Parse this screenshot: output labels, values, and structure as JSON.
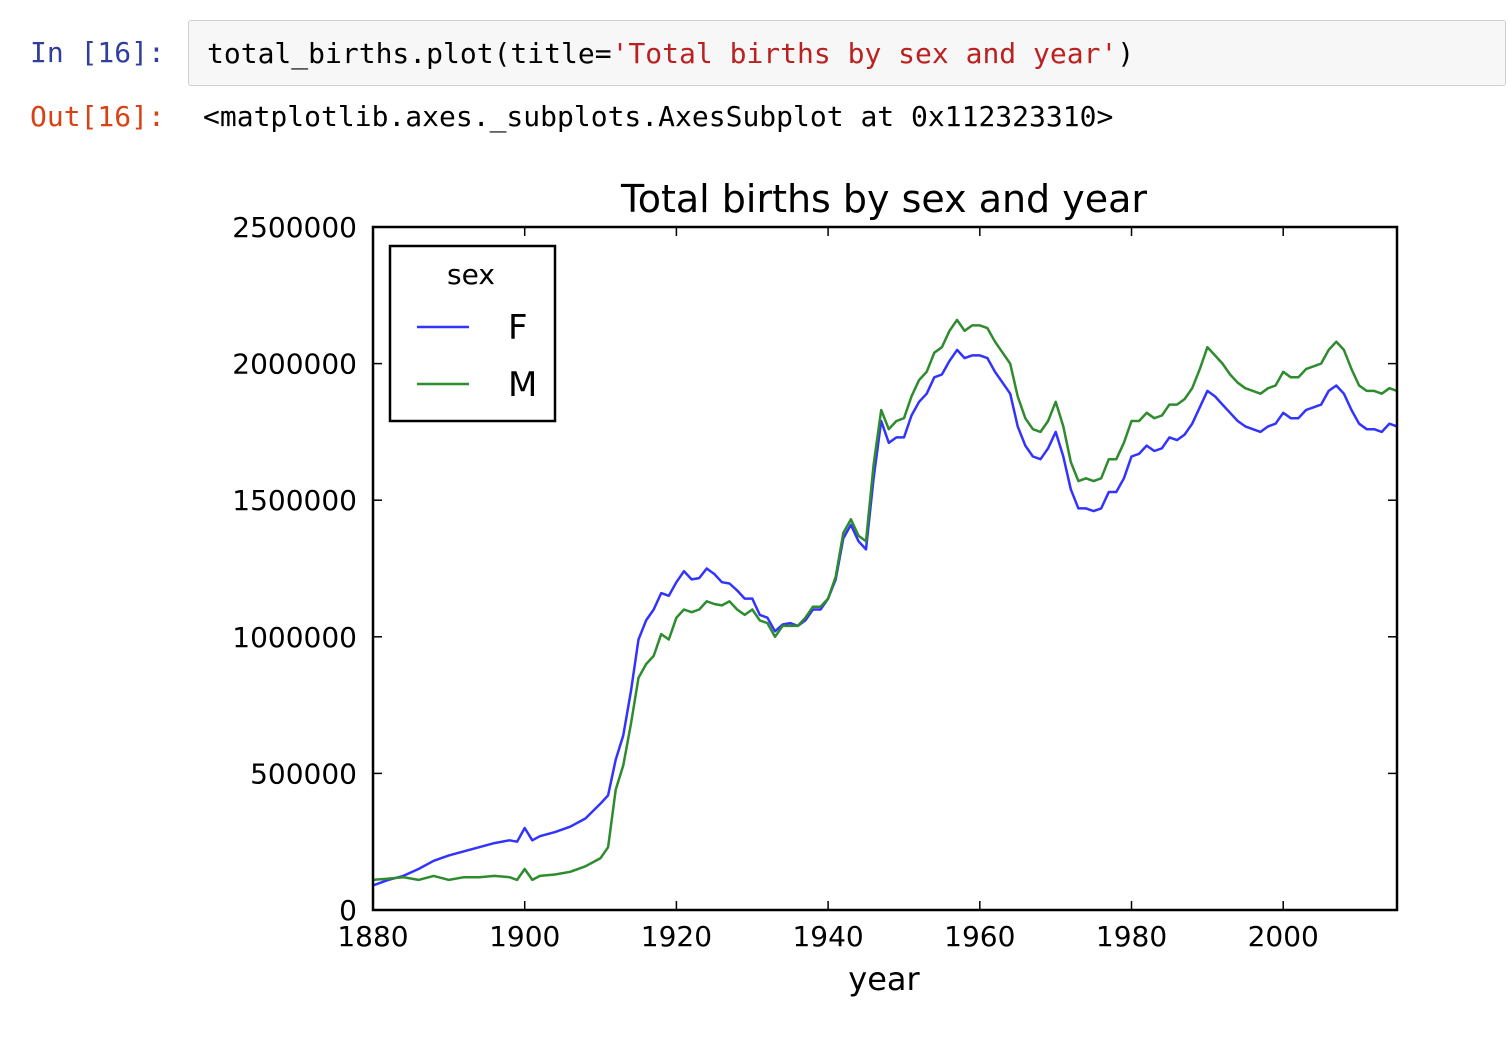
{
  "cell": {
    "input_prompt": "In [16]:",
    "output_prompt": "Out[16]:",
    "code_prefix": "total_births.plot(title=",
    "code_string": "'Total births by sex and year'",
    "code_suffix": ")",
    "output_repr": "<matplotlib.axes._subplots.AxesSubplot at 0x112323310>"
  },
  "colors": {
    "prompt_in": "#303F9F",
    "prompt_out": "#D84315",
    "code_string": "#BA2121",
    "series_F": "#3333FF",
    "series_M": "#2E8B2E"
  },
  "chart_data": {
    "type": "line",
    "title": "Total births by sex and year",
    "xlabel": "year",
    "ylabel": "",
    "xlim": [
      1880,
      2015
    ],
    "ylim": [
      0,
      2500000
    ],
    "xticks": [
      1880,
      1900,
      1920,
      1940,
      1960,
      1980,
      2000
    ],
    "yticks": [
      0,
      500000,
      1000000,
      1500000,
      2000000,
      2500000
    ],
    "grid": false,
    "legend": {
      "title": "sex",
      "placement": "upper-left"
    },
    "series": [
      {
        "name": "F",
        "points": [
          [
            1880,
            90000
          ],
          [
            1882,
            110000
          ],
          [
            1884,
            125000
          ],
          [
            1886,
            150000
          ],
          [
            1888,
            180000
          ],
          [
            1890,
            200000
          ],
          [
            1892,
            215000
          ],
          [
            1894,
            230000
          ],
          [
            1896,
            245000
          ],
          [
            1898,
            255000
          ],
          [
            1899,
            250000
          ],
          [
            1900,
            300000
          ],
          [
            1901,
            255000
          ],
          [
            1902,
            270000
          ],
          [
            1904,
            285000
          ],
          [
            1906,
            305000
          ],
          [
            1908,
            335000
          ],
          [
            1910,
            390000
          ],
          [
            1911,
            420000
          ],
          [
            1912,
            550000
          ],
          [
            1913,
            640000
          ],
          [
            1914,
            800000
          ],
          [
            1915,
            990000
          ],
          [
            1916,
            1060000
          ],
          [
            1917,
            1100000
          ],
          [
            1918,
            1160000
          ],
          [
            1919,
            1150000
          ],
          [
            1920,
            1200000
          ],
          [
            1921,
            1240000
          ],
          [
            1922,
            1210000
          ],
          [
            1923,
            1215000
          ],
          [
            1924,
            1250000
          ],
          [
            1925,
            1230000
          ],
          [
            1926,
            1200000
          ],
          [
            1927,
            1195000
          ],
          [
            1928,
            1170000
          ],
          [
            1929,
            1140000
          ],
          [
            1930,
            1140000
          ],
          [
            1931,
            1080000
          ],
          [
            1932,
            1070000
          ],
          [
            1933,
            1020000
          ],
          [
            1934,
            1045000
          ],
          [
            1935,
            1050000
          ],
          [
            1936,
            1040000
          ],
          [
            1937,
            1060000
          ],
          [
            1938,
            1100000
          ],
          [
            1939,
            1100000
          ],
          [
            1940,
            1140000
          ],
          [
            1941,
            1210000
          ],
          [
            1942,
            1360000
          ],
          [
            1943,
            1410000
          ],
          [
            1944,
            1350000
          ],
          [
            1945,
            1320000
          ],
          [
            1946,
            1580000
          ],
          [
            1947,
            1790000
          ],
          [
            1948,
            1710000
          ],
          [
            1949,
            1730000
          ],
          [
            1950,
            1730000
          ],
          [
            1951,
            1810000
          ],
          [
            1952,
            1860000
          ],
          [
            1953,
            1890000
          ],
          [
            1954,
            1950000
          ],
          [
            1955,
            1960000
          ],
          [
            1956,
            2010000
          ],
          [
            1957,
            2050000
          ],
          [
            1958,
            2020000
          ],
          [
            1959,
            2030000
          ],
          [
            1960,
            2030000
          ],
          [
            1961,
            2020000
          ],
          [
            1962,
            1970000
          ],
          [
            1963,
            1930000
          ],
          [
            1964,
            1890000
          ],
          [
            1965,
            1770000
          ],
          [
            1966,
            1700000
          ],
          [
            1967,
            1660000
          ],
          [
            1968,
            1650000
          ],
          [
            1969,
            1690000
          ],
          [
            1970,
            1750000
          ],
          [
            1971,
            1660000
          ],
          [
            1972,
            1540000
          ],
          [
            1973,
            1470000
          ],
          [
            1974,
            1470000
          ],
          [
            1975,
            1460000
          ],
          [
            1976,
            1470000
          ],
          [
            1977,
            1530000
          ],
          [
            1978,
            1530000
          ],
          [
            1979,
            1580000
          ],
          [
            1980,
            1660000
          ],
          [
            1981,
            1670000
          ],
          [
            1982,
            1700000
          ],
          [
            1983,
            1680000
          ],
          [
            1984,
            1690000
          ],
          [
            1985,
            1730000
          ],
          [
            1986,
            1720000
          ],
          [
            1987,
            1740000
          ],
          [
            1988,
            1780000
          ],
          [
            1989,
            1840000
          ],
          [
            1990,
            1900000
          ],
          [
            1991,
            1880000
          ],
          [
            1992,
            1850000
          ],
          [
            1993,
            1820000
          ],
          [
            1994,
            1790000
          ],
          [
            1995,
            1770000
          ],
          [
            1996,
            1760000
          ],
          [
            1997,
            1750000
          ],
          [
            1998,
            1770000
          ],
          [
            1999,
            1780000
          ],
          [
            2000,
            1820000
          ],
          [
            2001,
            1800000
          ],
          [
            2002,
            1800000
          ],
          [
            2003,
            1830000
          ],
          [
            2004,
            1840000
          ],
          [
            2005,
            1850000
          ],
          [
            2006,
            1900000
          ],
          [
            2007,
            1920000
          ],
          [
            2008,
            1890000
          ],
          [
            2009,
            1830000
          ],
          [
            2010,
            1780000
          ],
          [
            2011,
            1760000
          ],
          [
            2012,
            1760000
          ],
          [
            2013,
            1750000
          ],
          [
            2014,
            1780000
          ],
          [
            2015,
            1770000
          ]
        ]
      },
      {
        "name": "M",
        "points": [
          [
            1880,
            110000
          ],
          [
            1882,
            115000
          ],
          [
            1884,
            120000
          ],
          [
            1886,
            110000
          ],
          [
            1888,
            125000
          ],
          [
            1890,
            110000
          ],
          [
            1892,
            120000
          ],
          [
            1894,
            120000
          ],
          [
            1896,
            125000
          ],
          [
            1898,
            120000
          ],
          [
            1899,
            110000
          ],
          [
            1900,
            150000
          ],
          [
            1901,
            110000
          ],
          [
            1902,
            125000
          ],
          [
            1904,
            130000
          ],
          [
            1906,
            140000
          ],
          [
            1908,
            160000
          ],
          [
            1910,
            190000
          ],
          [
            1911,
            230000
          ],
          [
            1912,
            440000
          ],
          [
            1913,
            530000
          ],
          [
            1914,
            680000
          ],
          [
            1915,
            850000
          ],
          [
            1916,
            900000
          ],
          [
            1917,
            930000
          ],
          [
            1918,
            1010000
          ],
          [
            1919,
            990000
          ],
          [
            1920,
            1070000
          ],
          [
            1921,
            1100000
          ],
          [
            1922,
            1090000
          ],
          [
            1923,
            1100000
          ],
          [
            1924,
            1130000
          ],
          [
            1925,
            1120000
          ],
          [
            1926,
            1115000
          ],
          [
            1927,
            1130000
          ],
          [
            1928,
            1100000
          ],
          [
            1929,
            1080000
          ],
          [
            1930,
            1100000
          ],
          [
            1931,
            1060000
          ],
          [
            1932,
            1050000
          ],
          [
            1933,
            1000000
          ],
          [
            1934,
            1040000
          ],
          [
            1935,
            1040000
          ],
          [
            1936,
            1040000
          ],
          [
            1937,
            1070000
          ],
          [
            1938,
            1110000
          ],
          [
            1939,
            1110000
          ],
          [
            1940,
            1140000
          ],
          [
            1941,
            1220000
          ],
          [
            1942,
            1380000
          ],
          [
            1943,
            1430000
          ],
          [
            1944,
            1370000
          ],
          [
            1945,
            1350000
          ],
          [
            1946,
            1630000
          ],
          [
            1947,
            1830000
          ],
          [
            1948,
            1760000
          ],
          [
            1949,
            1790000
          ],
          [
            1950,
            1800000
          ],
          [
            1951,
            1880000
          ],
          [
            1952,
            1940000
          ],
          [
            1953,
            1970000
          ],
          [
            1954,
            2040000
          ],
          [
            1955,
            2060000
          ],
          [
            1956,
            2120000
          ],
          [
            1957,
            2160000
          ],
          [
            1958,
            2120000
          ],
          [
            1959,
            2140000
          ],
          [
            1960,
            2140000
          ],
          [
            1961,
            2130000
          ],
          [
            1962,
            2080000
          ],
          [
            1963,
            2040000
          ],
          [
            1964,
            2000000
          ],
          [
            1965,
            1880000
          ],
          [
            1966,
            1800000
          ],
          [
            1967,
            1760000
          ],
          [
            1968,
            1750000
          ],
          [
            1969,
            1790000
          ],
          [
            1970,
            1860000
          ],
          [
            1971,
            1770000
          ],
          [
            1972,
            1640000
          ],
          [
            1973,
            1570000
          ],
          [
            1974,
            1580000
          ],
          [
            1975,
            1570000
          ],
          [
            1976,
            1580000
          ],
          [
            1977,
            1650000
          ],
          [
            1978,
            1650000
          ],
          [
            1979,
            1710000
          ],
          [
            1980,
            1790000
          ],
          [
            1981,
            1790000
          ],
          [
            1982,
            1820000
          ],
          [
            1983,
            1800000
          ],
          [
            1984,
            1810000
          ],
          [
            1985,
            1850000
          ],
          [
            1986,
            1850000
          ],
          [
            1987,
            1870000
          ],
          [
            1988,
            1910000
          ],
          [
            1989,
            1980000
          ],
          [
            1990,
            2060000
          ],
          [
            1991,
            2030000
          ],
          [
            1992,
            2000000
          ],
          [
            1993,
            1960000
          ],
          [
            1994,
            1930000
          ],
          [
            1995,
            1910000
          ],
          [
            1996,
            1900000
          ],
          [
            1997,
            1890000
          ],
          [
            1998,
            1910000
          ],
          [
            1999,
            1920000
          ],
          [
            2000,
            1970000
          ],
          [
            2001,
            1950000
          ],
          [
            2002,
            1950000
          ],
          [
            2003,
            1980000
          ],
          [
            2004,
            1990000
          ],
          [
            2005,
            2000000
          ],
          [
            2006,
            2050000
          ],
          [
            2007,
            2080000
          ],
          [
            2008,
            2050000
          ],
          [
            2009,
            1980000
          ],
          [
            2010,
            1920000
          ],
          [
            2011,
            1900000
          ],
          [
            2012,
            1900000
          ],
          [
            2013,
            1890000
          ],
          [
            2014,
            1910000
          ],
          [
            2015,
            1900000
          ]
        ]
      }
    ]
  }
}
